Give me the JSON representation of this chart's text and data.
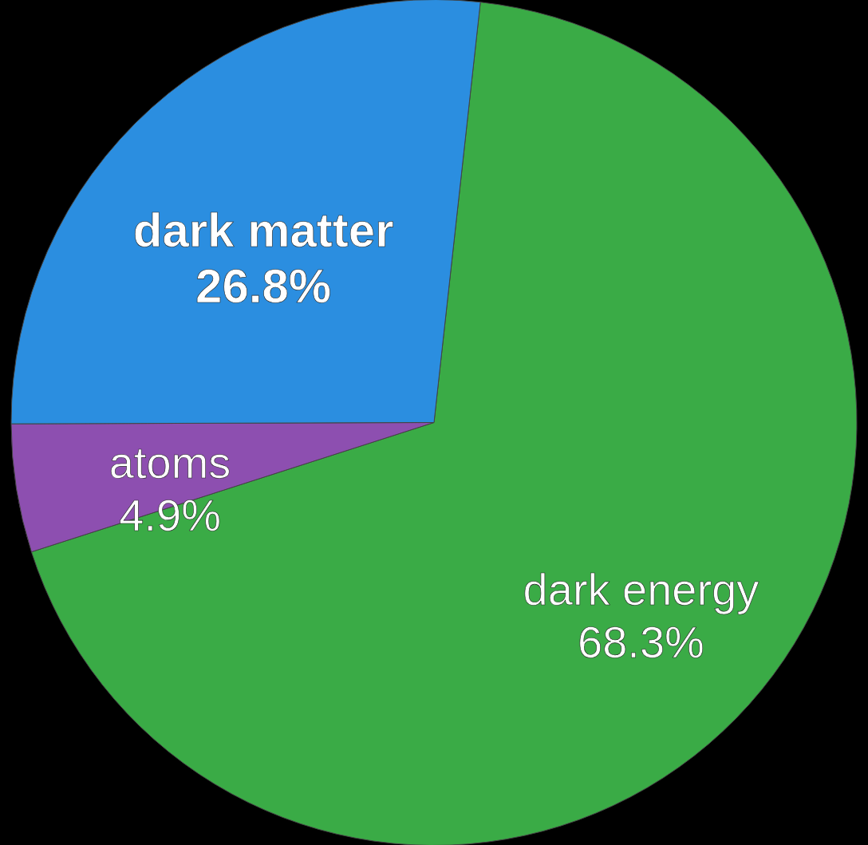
{
  "chart_data": {
    "type": "pie",
    "categories": [
      "dark energy",
      "atoms",
      "dark matter"
    ],
    "values": [
      68.3,
      4.9,
      26.8
    ],
    "colors": [
      "#3aab46",
      "#8d4fb0",
      "#2b8ee0"
    ],
    "value_labels": [
      "68.3%",
      "4.9%",
      "26.8%"
    ],
    "legend": false
  }
}
